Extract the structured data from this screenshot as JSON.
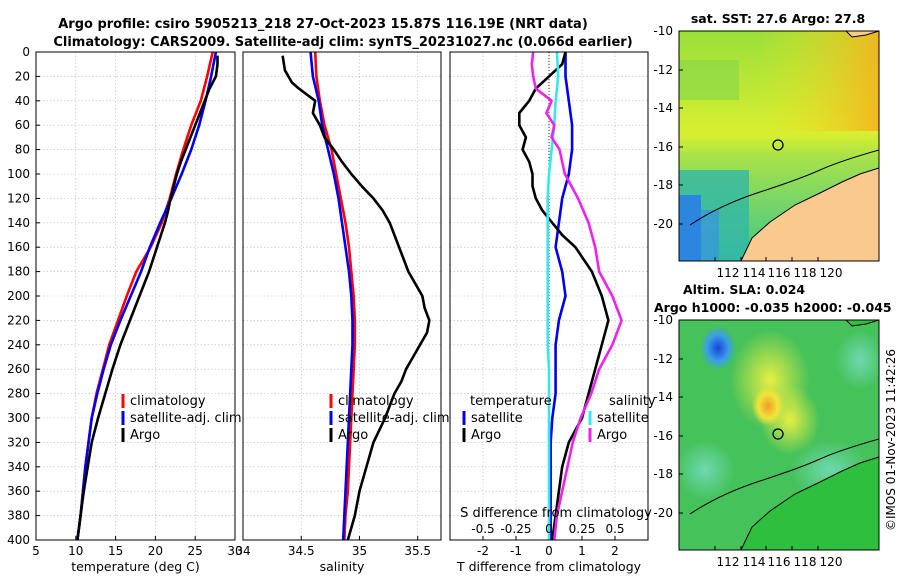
{
  "title": {
    "line1": "Argo profile: csiro 5905213_218 27-Oct-2023 15.87S 116.19E (NRT data)",
    "line2": "Climatology: CARS2009. Satellite-adj clim: synTS_20231027.nc (0.066d earlier)"
  },
  "colors": {
    "climatology": "#ff0000",
    "satellite": "#0000ee",
    "argo": "#000000",
    "sat_salinity": "#33e8f0",
    "argo_salinity": "#ee22ee",
    "grid": "#bbbbbb"
  },
  "depth_axis": {
    "ylim": [
      0,
      400
    ],
    "ticks": [
      0,
      20,
      40,
      60,
      80,
      100,
      120,
      140,
      160,
      180,
      200,
      220,
      240,
      260,
      280,
      300,
      320,
      340,
      360,
      380,
      400
    ],
    "tick_labels": [
      "0",
      "20",
      "40",
      "60",
      "80",
      "100",
      "120",
      "140",
      "160",
      "180",
      "200",
      "220",
      "240",
      "260",
      "280",
      "300",
      "320",
      "340",
      "360",
      "380",
      "400"
    ]
  },
  "chart_data": [
    {
      "type": "line",
      "id": "temperature",
      "xlabel": "temperature (deg C)",
      "xlim": [
        5,
        30
      ],
      "xticks": [
        5,
        10,
        15,
        20,
        25,
        30
      ],
      "xtick_labels": [
        "5",
        "10",
        "15",
        "20",
        "25",
        "30"
      ],
      "ylim": [
        0,
        400
      ],
      "grid": true,
      "legend_position": "lower-right",
      "legend": [
        "climatology",
        "satellite-adj. clim",
        "Argo"
      ],
      "series": [
        {
          "name": "climatology",
          "color": "#ff0000",
          "depth": [
            0,
            20,
            40,
            60,
            80,
            100,
            120,
            140,
            160,
            180,
            200,
            220,
            240,
            260,
            280,
            300,
            320,
            340,
            360,
            380,
            400
          ],
          "values": [
            27.2,
            26.5,
            25.7,
            24.5,
            23.5,
            22.6,
            21.8,
            20.8,
            19.4,
            17.6,
            16.4,
            15.3,
            14.2,
            13.4,
            12.6,
            12.0,
            11.6,
            11.2,
            10.9,
            10.6,
            10.2
          ]
        },
        {
          "name": "satellite-adj. clim",
          "color": "#0000ee",
          "depth": [
            0,
            20,
            40,
            60,
            80,
            100,
            120,
            140,
            160,
            180,
            200,
            220,
            240,
            260,
            280,
            300,
            320,
            340,
            360,
            380,
            400
          ],
          "values": [
            27.6,
            27.0,
            26.3,
            25.5,
            24.5,
            23.3,
            22.0,
            20.6,
            19.3,
            18.2,
            16.9,
            15.6,
            14.4,
            13.5,
            12.7,
            12.0,
            11.6,
            11.2,
            10.9,
            10.6,
            10.2
          ]
        },
        {
          "name": "Argo",
          "color": "#000000",
          "depth": [
            3,
            10,
            20,
            30,
            40,
            50,
            60,
            70,
            80,
            90,
            100,
            110,
            120,
            130,
            140,
            150,
            160,
            180,
            200,
            220,
            240,
            260,
            280,
            300,
            320,
            340,
            360,
            380,
            400
          ],
          "values": [
            27.8,
            27.8,
            27.6,
            26.8,
            26.2,
            25.6,
            25.0,
            24.4,
            23.8,
            23.2,
            22.7,
            22.3,
            21.9,
            21.6,
            21.2,
            20.7,
            20.2,
            19.2,
            18.0,
            16.8,
            15.6,
            14.6,
            13.7,
            12.8,
            12.0,
            11.5,
            11.0,
            10.6,
            10.2
          ]
        }
      ]
    },
    {
      "type": "line",
      "id": "salinity",
      "xlabel": "salinity",
      "xlim": [
        34,
        35.7
      ],
      "xticks": [
        34,
        34.5,
        35,
        35.5
      ],
      "xtick_labels": [
        "34",
        "34.5",
        "35",
        "35.5"
      ],
      "ylim": [
        0,
        400
      ],
      "grid": true,
      "legend_position": "lower-right",
      "legend": [
        "climatology",
        "satellite-adj. clim",
        "Argo"
      ],
      "series": [
        {
          "name": "climatology",
          "color": "#ff0000",
          "depth": [
            0,
            20,
            40,
            60,
            80,
            100,
            120,
            140,
            160,
            180,
            200,
            220,
            240,
            260,
            280,
            300,
            320,
            340,
            360,
            380,
            400
          ],
          "values": [
            34.62,
            34.63,
            34.66,
            34.7,
            34.76,
            34.8,
            34.84,
            34.88,
            34.91,
            34.93,
            34.95,
            34.96,
            34.96,
            34.95,
            34.94,
            34.93,
            34.92,
            34.91,
            34.9,
            34.88,
            34.87
          ]
        },
        {
          "name": "satellite-adj. clim",
          "color": "#0000ee",
          "depth": [
            0,
            20,
            40,
            60,
            80,
            100,
            120,
            140,
            160,
            180,
            200,
            220,
            240,
            260,
            280,
            300,
            320,
            340,
            360,
            380,
            400
          ],
          "values": [
            34.58,
            34.6,
            34.65,
            34.68,
            34.73,
            34.78,
            34.82,
            34.85,
            34.88,
            34.91,
            34.93,
            34.94,
            34.94,
            34.93,
            34.92,
            34.91,
            34.9,
            34.89,
            34.88,
            34.87,
            34.86
          ]
        },
        {
          "name": "Argo",
          "color": "#000000",
          "depth": [
            3,
            15,
            25,
            30,
            40,
            50,
            60,
            70,
            80,
            90,
            100,
            110,
            120,
            130,
            140,
            150,
            160,
            170,
            180,
            190,
            200,
            210,
            220,
            230,
            240,
            250,
            260,
            270,
            280,
            290,
            300,
            320,
            340,
            360,
            380,
            400
          ],
          "values": [
            34.34,
            34.36,
            34.42,
            34.48,
            34.62,
            34.6,
            34.66,
            34.7,
            34.78,
            34.85,
            34.93,
            35.02,
            35.12,
            35.2,
            35.26,
            35.3,
            35.34,
            35.38,
            35.42,
            35.48,
            35.54,
            35.56,
            35.6,
            35.58,
            35.52,
            35.46,
            35.4,
            35.36,
            35.3,
            35.26,
            35.22,
            35.12,
            35.06,
            35.0,
            34.96,
            34.9
          ]
        }
      ]
    },
    {
      "type": "line",
      "id": "differences",
      "xlabel": "T difference from climatology",
      "xlim": [
        -3,
        3
      ],
      "xticks": [
        -2,
        -1,
        0,
        1,
        2
      ],
      "xtick_labels": [
        "-2",
        "-1",
        "0",
        "1",
        "2"
      ],
      "top_label": "S difference from climatology",
      "s_xticks": [
        -0.5,
        -0.25,
        0,
        0.25,
        0.5
      ],
      "s_xtick_labels": [
        "-0.5",
        "-0.25",
        "0",
        "0.25",
        "0.5"
      ],
      "ylim": [
        0,
        400
      ],
      "grid": true,
      "legend_left_title": "temperature",
      "legend_right_title": "salinity",
      "legend_left": [
        "satellite",
        "Argo"
      ],
      "legend_right": [
        "satellite",
        "Argo"
      ],
      "series": [
        {
          "name": "temperature satellite",
          "color": "#0000ee",
          "depth": [
            0,
            20,
            40,
            60,
            80,
            100,
            120,
            140,
            160,
            180,
            200,
            220,
            240,
            260,
            280,
            300,
            320,
            340,
            360,
            380,
            400
          ],
          "values": [
            0.5,
            0.5,
            0.6,
            0.7,
            0.7,
            0.6,
            0.4,
            0.3,
            0.2,
            0.4,
            0.5,
            0.3,
            0.2,
            0.2,
            0.2,
            0.1,
            0.05,
            0.05,
            0.05,
            0.05,
            0.05
          ]
        },
        {
          "name": "temperature Argo",
          "color": "#000000",
          "depth": [
            0,
            10,
            20,
            30,
            40,
            50,
            60,
            70,
            80,
            90,
            100,
            110,
            120,
            130,
            140,
            150,
            160,
            180,
            200,
            220,
            240,
            260,
            280,
            300,
            320,
            340,
            360,
            380,
            400
          ],
          "values": [
            0.5,
            0.4,
            0.0,
            -0.4,
            -0.6,
            -0.9,
            -0.9,
            -0.7,
            -0.8,
            -0.6,
            -0.5,
            -0.5,
            -0.4,
            -0.2,
            0.1,
            0.4,
            0.8,
            1.3,
            1.6,
            1.8,
            1.6,
            1.4,
            1.2,
            1.0,
            0.6,
            0.4,
            0.3,
            0.2,
            0.1
          ]
        },
        {
          "name": "salinity satellite",
          "color": "#33e8f0",
          "depth": [
            0,
            20,
            40,
            60,
            80,
            100,
            120,
            140,
            160,
            180,
            200,
            220,
            240,
            260,
            280,
            300,
            320,
            340,
            360,
            380,
            400
          ],
          "values": [
            0.06,
            0.07,
            0.05,
            0.04,
            0.02,
            0.0,
            -0.01,
            -0.01,
            -0.01,
            -0.01,
            -0.01,
            -0.01,
            -0.01,
            0.0,
            0.0,
            0.0,
            0.0,
            0.0,
            0.0,
            0.0,
            0.0
          ]
        },
        {
          "name": "salinity Argo",
          "color": "#ee22ee",
          "depth": [
            0,
            10,
            20,
            30,
            40,
            50,
            60,
            70,
            80,
            100,
            120,
            140,
            160,
            180,
            200,
            220,
            240,
            260,
            280,
            300,
            320,
            340,
            360,
            380,
            400
          ],
          "values": [
            -0.12,
            -0.13,
            -0.12,
            -0.1,
            0.02,
            -0.02,
            0.04,
            0.02,
            0.08,
            0.12,
            0.22,
            0.3,
            0.35,
            0.38,
            0.48,
            0.55,
            0.48,
            0.38,
            0.32,
            0.24,
            0.18,
            0.14,
            0.1,
            0.06,
            0.04
          ]
        }
      ]
    }
  ],
  "maps": {
    "sst": {
      "title": "sat. SST: 27.6 Argo: 27.8",
      "lon_ticks": [
        "112",
        "114",
        "116",
        "118",
        "120"
      ],
      "lat_ticks": [
        "-10",
        "-12",
        "-14",
        "-16",
        "-18",
        "-20"
      ]
    },
    "sla": {
      "title1": "Altim. SLA: 0.024",
      "title2": "Argo h1000: -0.035 h2000: -0.045",
      "lon_ticks": [
        "112",
        "114",
        "116",
        "118",
        "120"
      ],
      "lat_ticks": [
        "-10",
        "-12",
        "-14",
        "-16",
        "-18",
        "-20"
      ]
    },
    "credit": "©IMOS 01-Nov-2023 11:42:26"
  }
}
